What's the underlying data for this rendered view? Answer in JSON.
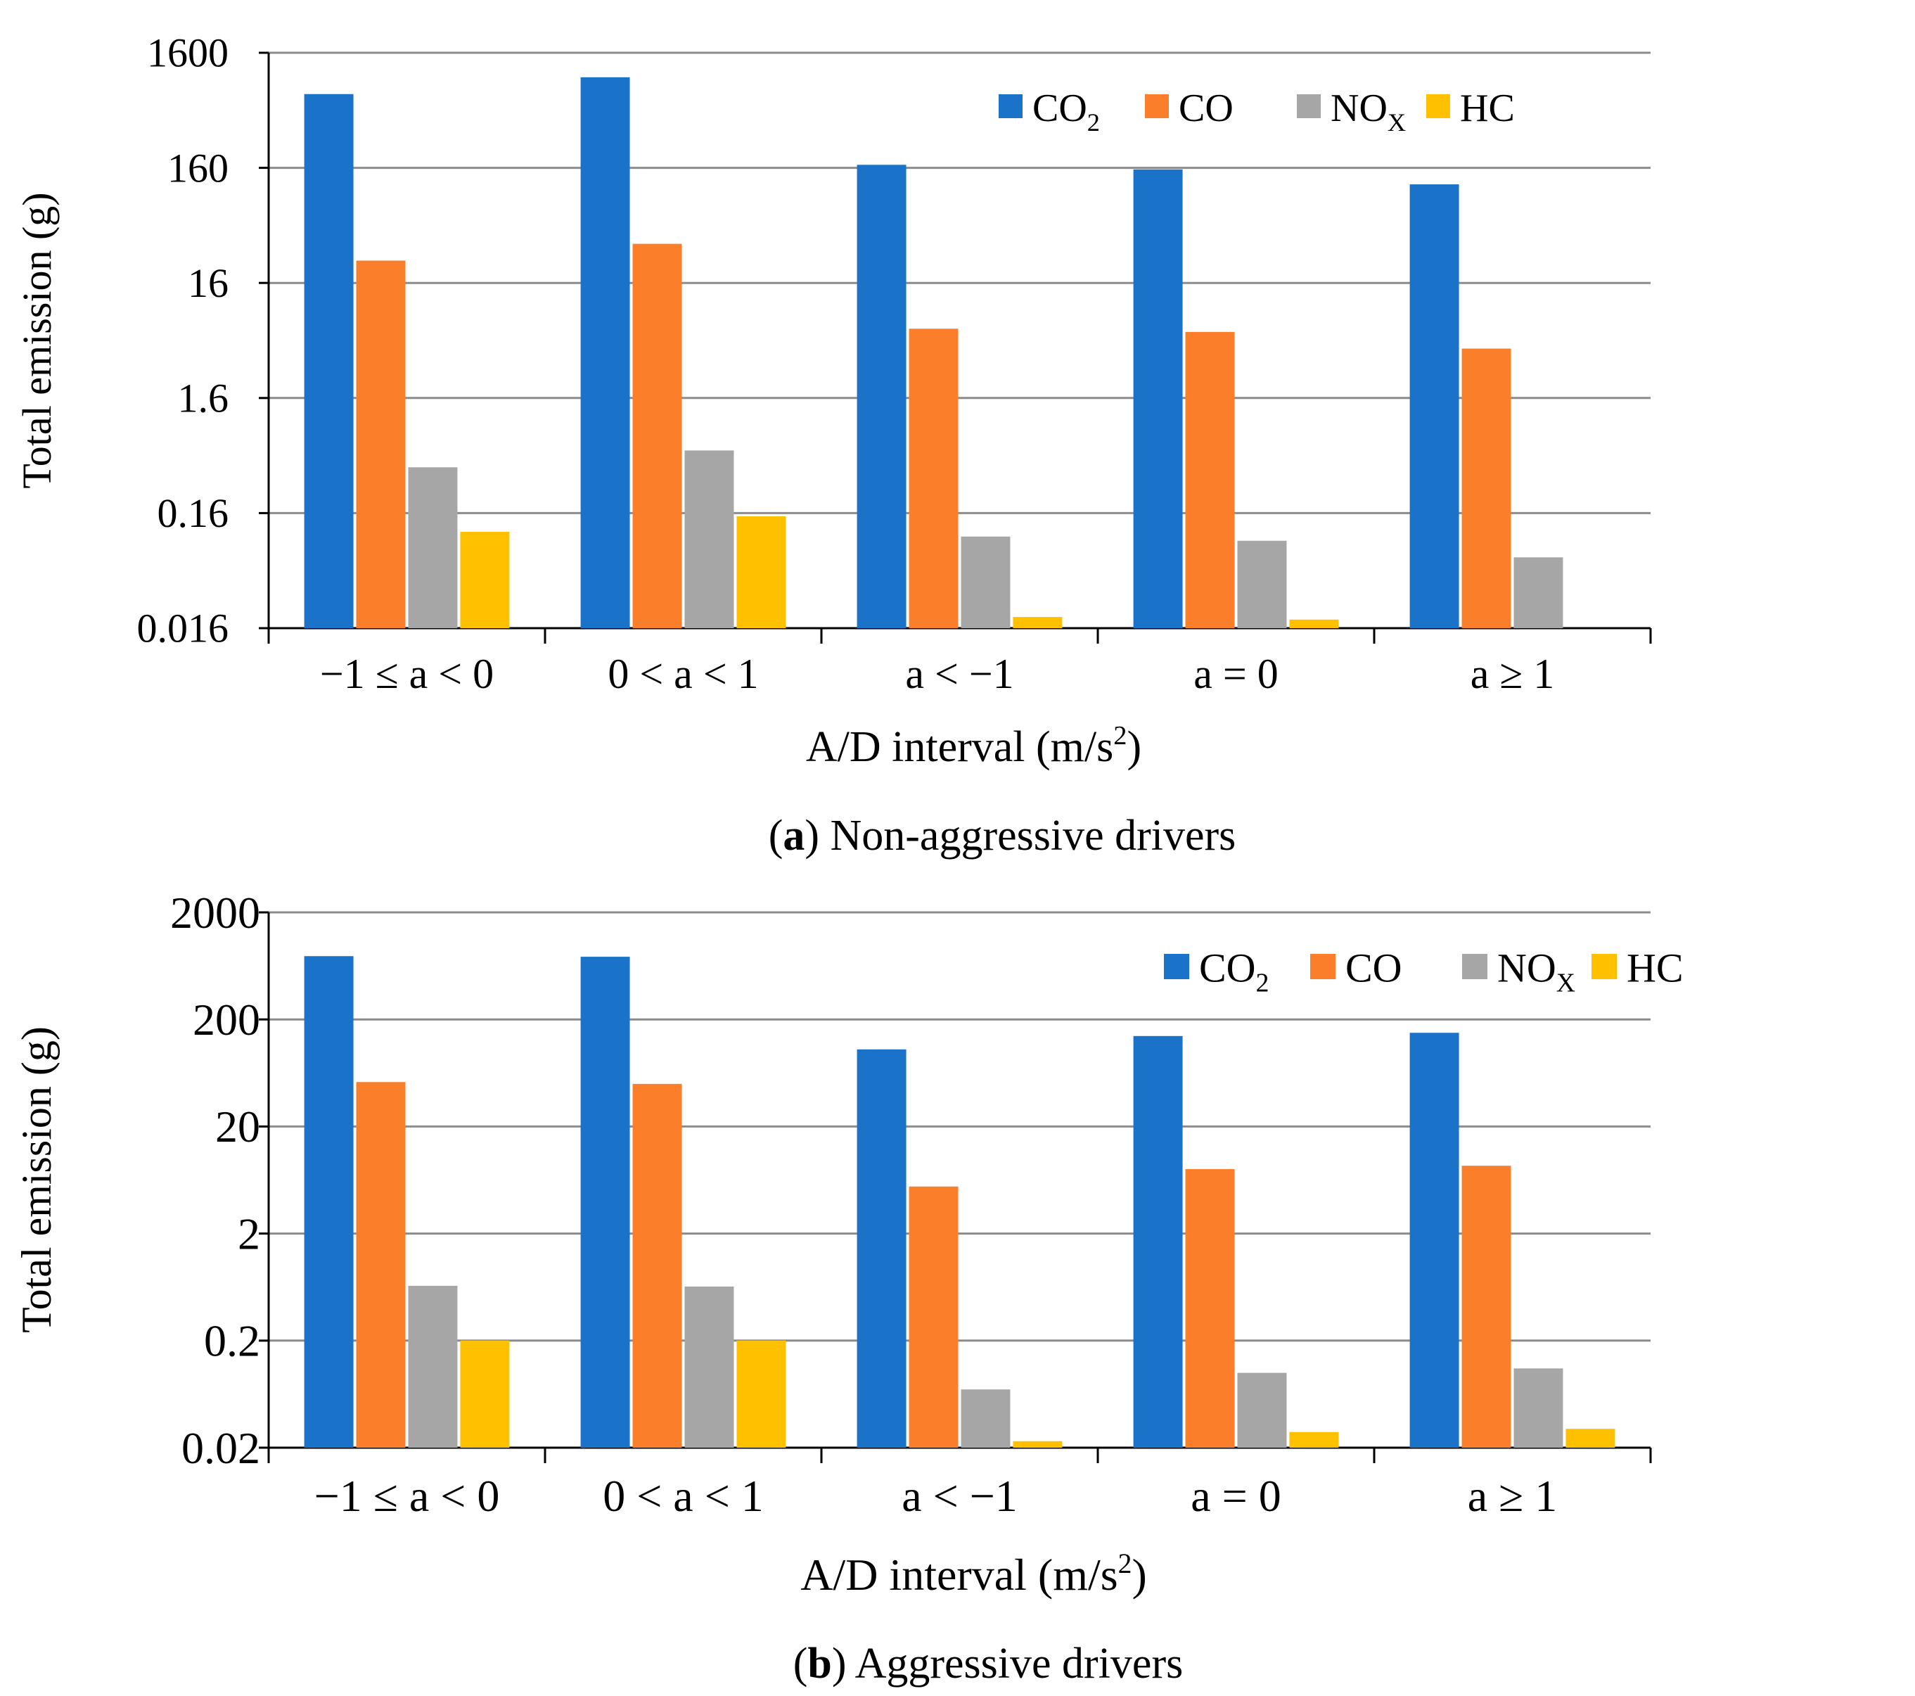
{
  "figure": {
    "panels": [
      {
        "caption_letter": "a",
        "caption_text": ") Non-aggressive drivers"
      },
      {
        "caption_letter": "b",
        "caption_text": ") Aggressive drivers"
      }
    ]
  },
  "chart_data": [
    {
      "type": "bar",
      "title": "(a) Non-aggressive drivers",
      "xlabel": "A/D interval (m/s2)",
      "xlabel_main": "A/D interval (m/s",
      "xlabel_sup": "2",
      "xlabel_close": ")",
      "ylabel": "Total emission (g)",
      "yscale": "log",
      "ylim": [
        0.016,
        1600
      ],
      "yticks": [
        0.016,
        0.16,
        1.6,
        16,
        160,
        1600
      ],
      "ytick_labels": [
        "0.016",
        "0.16",
        "1.6",
        "16",
        "160",
        "1600"
      ],
      "grid": true,
      "legend_position": "top-right",
      "categories": [
        "−1 ≤ a < 0",
        "0 < a < 1",
        "a < −1",
        "a = 0",
        "a ≥ 1"
      ],
      "series": [
        {
          "name": "CO2",
          "label_main": "CO",
          "label_sub": "2",
          "color": "#1a73c8",
          "values": [
            700,
            980,
            170,
            155,
            115
          ]
        },
        {
          "name": "CO",
          "label_main": "CO",
          "label_sub": "",
          "color": "#fb7e2b",
          "values": [
            25,
            35,
            6.4,
            6.0,
            4.3
          ]
        },
        {
          "name": "NOx",
          "label_main": "NO",
          "label_sub": "X",
          "color": "#a6a6a6",
          "values": [
            0.4,
            0.56,
            0.1,
            0.092,
            0.066
          ]
        },
        {
          "name": "HC",
          "label_main": "HC",
          "label_sub": "",
          "color": "#ffc000",
          "values": [
            0.11,
            0.15,
            0.02,
            0.019,
            null
          ]
        }
      ]
    },
    {
      "type": "bar",
      "title": "(b) Aggressive drivers",
      "xlabel": "A/D interval (m/s2)",
      "xlabel_main": "A/D interval (m/s",
      "xlabel_sup": "2",
      "xlabel_close": ")",
      "ylabel": "Total emission (g)",
      "yscale": "log",
      "ylim": [
        0.02,
        2000
      ],
      "yticks": [
        0.02,
        0.2,
        2,
        20,
        200,
        2000
      ],
      "ytick_labels": [
        "0.02",
        "0.2",
        "2",
        "20",
        "200",
        "2000"
      ],
      "grid": true,
      "legend_position": "top-right",
      "categories": [
        "−1 ≤ a < 0",
        "0 < a < 1",
        "a < −1",
        "a = 0",
        "a ≥ 1"
      ],
      "series": [
        {
          "name": "CO2",
          "label_main": "CO",
          "label_sub": "2",
          "color": "#1a73c8",
          "values": [
            780,
            770,
            105,
            140,
            150
          ]
        },
        {
          "name": "CO",
          "label_main": "CO",
          "label_sub": "",
          "color": "#fb7e2b",
          "values": [
            52,
            50,
            5.5,
            8.0,
            8.6
          ]
        },
        {
          "name": "NOx",
          "label_main": "NO",
          "label_sub": "X",
          "color": "#a6a6a6",
          "values": [
            0.65,
            0.64,
            0.07,
            0.1,
            0.11
          ]
        },
        {
          "name": "HC",
          "label_main": "HC",
          "label_sub": "",
          "color": "#ffc000",
          "values": [
            0.2,
            0.2,
            0.023,
            0.028,
            0.03
          ]
        }
      ]
    }
  ]
}
